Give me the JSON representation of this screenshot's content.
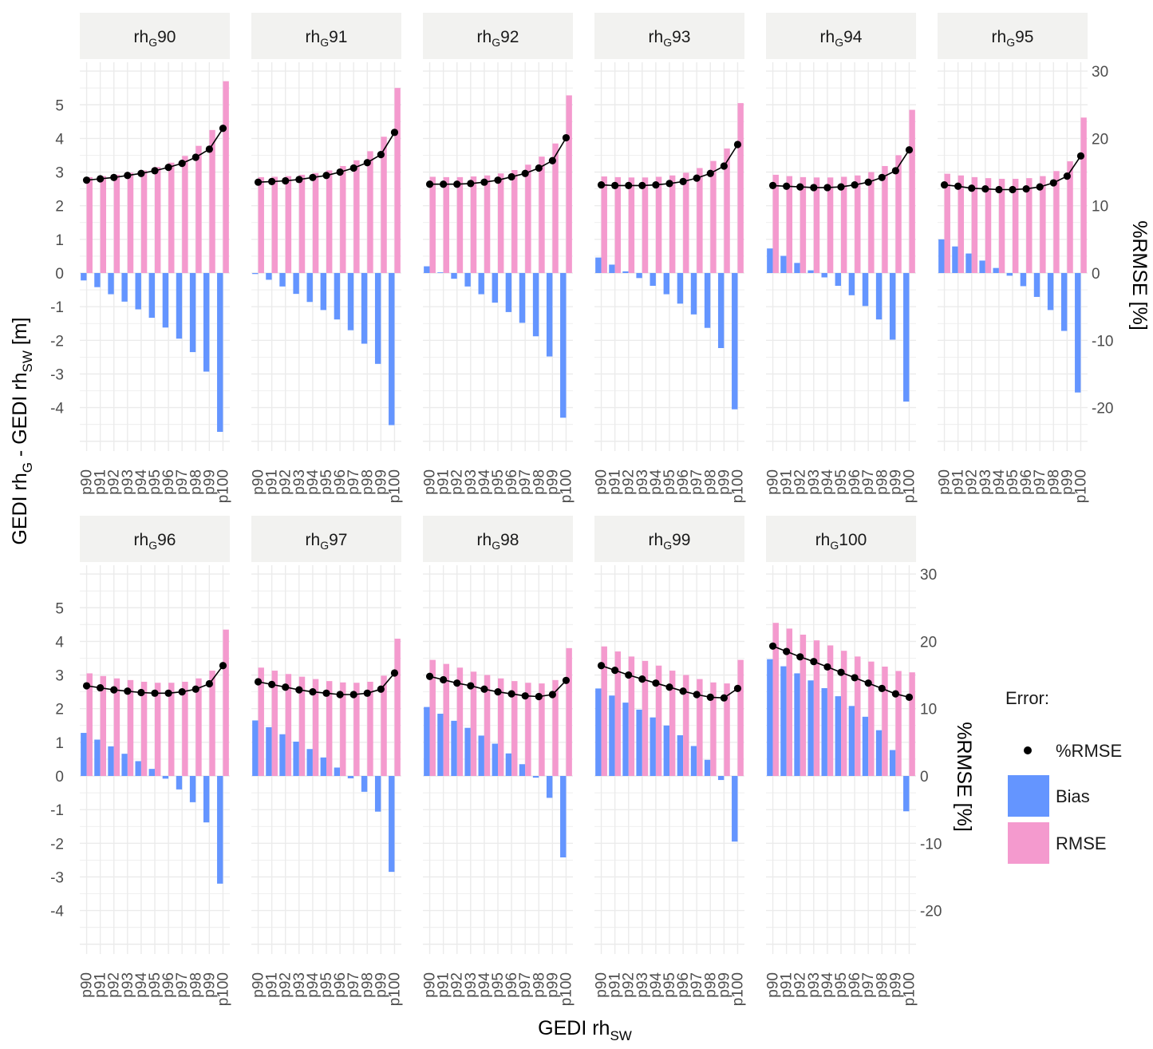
{
  "chart_data": {
    "type": "bar",
    "xlabel": {
      "main": "GEDI rh",
      "sub": "SW"
    },
    "ylabel": {
      "p1": "GEDI rh",
      "s1": "G",
      "p2": " - GEDI rh",
      "s2": "SW",
      "p3": " [m]"
    },
    "y2label": "%RMSE [%]",
    "categories": [
      "p90",
      "p91",
      "p92",
      "p93",
      "p94",
      "p95",
      "p96",
      "p97",
      "p98",
      "p99",
      "p100"
    ],
    "ylim": [
      -5.3,
      6.2
    ],
    "y_ticks": [
      "5",
      "4",
      "3",
      "2",
      "1",
      "0",
      "-1",
      "-2",
      "-3",
      "-4"
    ],
    "y2_ticks": [
      "30",
      "20",
      "10",
      "0",
      "-10",
      "-20"
    ],
    "legend": {
      "title": "Error:",
      "position": "right",
      "items": [
        "%RMSE",
        "Bias",
        "RMSE"
      ]
    },
    "colors": {
      "bias": "#6495FF",
      "rmse": "#F49ACE",
      "prmse": "#000000",
      "strip_bg": "#F2F2F0",
      "grid": "#EBEBEB"
    },
    "panels": [
      {
        "prefix": "rh",
        "sub": "G",
        "num": "90",
        "bias": [
          -0.22,
          -0.42,
          -0.63,
          -0.85,
          -1.08,
          -1.33,
          -1.62,
          -1.95,
          -2.35,
          -2.93,
          -4.72
        ],
        "rmse": [
          2.85,
          2.88,
          2.92,
          2.98,
          3.05,
          3.15,
          3.28,
          3.48,
          3.78,
          4.25,
          5.7
        ],
        "prmse": [
          13.8,
          14.0,
          14.2,
          14.5,
          14.8,
          15.2,
          15.7,
          16.3,
          17.2,
          18.4,
          21.5
        ]
      },
      {
        "prefix": "rh",
        "sub": "G",
        "num": "91",
        "bias": [
          -0.03,
          -0.2,
          -0.4,
          -0.62,
          -0.86,
          -1.1,
          -1.38,
          -1.7,
          -2.1,
          -2.7,
          -4.52
        ],
        "rmse": [
          2.85,
          2.86,
          2.88,
          2.92,
          2.97,
          3.05,
          3.18,
          3.35,
          3.62,
          4.05,
          5.5
        ],
        "prmse": [
          13.5,
          13.6,
          13.7,
          13.9,
          14.2,
          14.5,
          15.0,
          15.6,
          16.4,
          17.6,
          20.9
        ]
      },
      {
        "prefix": "rh",
        "sub": "G",
        "num": "92",
        "bias": [
          0.2,
          0.02,
          -0.17,
          -0.4,
          -0.63,
          -0.88,
          -1.16,
          -1.48,
          -1.88,
          -2.48,
          -4.3
        ],
        "rmse": [
          2.86,
          2.85,
          2.85,
          2.87,
          2.9,
          2.96,
          3.06,
          3.22,
          3.46,
          3.85,
          5.28
        ],
        "prmse": [
          13.2,
          13.2,
          13.2,
          13.3,
          13.5,
          13.8,
          14.3,
          14.8,
          15.6,
          16.7,
          20.1
        ]
      },
      {
        "prefix": "rh",
        "sub": "G",
        "num": "93",
        "bias": [
          0.46,
          0.25,
          0.05,
          -0.15,
          -0.38,
          -0.63,
          -0.91,
          -1.23,
          -1.63,
          -2.23,
          -4.05
        ],
        "rmse": [
          2.87,
          2.85,
          2.84,
          2.84,
          2.86,
          2.9,
          2.98,
          3.12,
          3.33,
          3.7,
          5.05
        ],
        "prmse": [
          13.1,
          13.0,
          13.0,
          13.0,
          13.1,
          13.3,
          13.6,
          14.1,
          14.8,
          15.9,
          19.1
        ]
      },
      {
        "prefix": "rh",
        "sub": "G",
        "num": "94",
        "bias": [
          0.73,
          0.51,
          0.3,
          0.08,
          -0.13,
          -0.38,
          -0.66,
          -0.98,
          -1.38,
          -1.98,
          -3.82
        ],
        "rmse": [
          2.92,
          2.88,
          2.85,
          2.84,
          2.84,
          2.86,
          2.9,
          3.0,
          3.18,
          3.5,
          4.85
        ],
        "prmse": [
          13.0,
          12.9,
          12.8,
          12.7,
          12.7,
          12.8,
          13.1,
          13.5,
          14.2,
          15.2,
          18.3
        ]
      },
      {
        "prefix": "rh",
        "sub": "G",
        "num": "95",
        "bias": [
          1.0,
          0.79,
          0.58,
          0.37,
          0.15,
          -0.08,
          -0.39,
          -0.71,
          -1.1,
          -1.72,
          -3.55
        ],
        "rmse": [
          2.95,
          2.9,
          2.85,
          2.82,
          2.8,
          2.8,
          2.82,
          2.88,
          3.03,
          3.32,
          4.62
        ],
        "prmse": [
          13.1,
          12.9,
          12.6,
          12.5,
          12.4,
          12.4,
          12.5,
          12.8,
          13.4,
          14.4,
          17.4
        ]
      },
      {
        "prefix": "rh",
        "sub": "G",
        "num": "96",
        "bias": [
          1.28,
          1.08,
          0.88,
          0.66,
          0.44,
          0.21,
          -0.08,
          -0.4,
          -0.78,
          -1.38,
          -3.2
        ],
        "rmse": [
          3.05,
          2.97,
          2.9,
          2.85,
          2.8,
          2.77,
          2.77,
          2.8,
          2.9,
          3.13,
          4.35
        ],
        "prmse": [
          13.4,
          13.1,
          12.8,
          12.6,
          12.4,
          12.3,
          12.3,
          12.5,
          12.9,
          13.7,
          16.4
        ]
      },
      {
        "prefix": "rh",
        "sub": "G",
        "num": "97",
        "bias": [
          1.65,
          1.45,
          1.24,
          1.02,
          0.8,
          0.55,
          0.25,
          -0.07,
          -0.47,
          -1.06,
          -2.85
        ],
        "rmse": [
          3.22,
          3.13,
          3.03,
          2.95,
          2.88,
          2.82,
          2.78,
          2.77,
          2.8,
          2.98,
          4.08
        ],
        "prmse": [
          14.0,
          13.6,
          13.2,
          12.8,
          12.5,
          12.3,
          12.1,
          12.1,
          12.3,
          12.9,
          15.3
        ]
      },
      {
        "prefix": "rh",
        "sub": "G",
        "num": "98",
        "bias": [
          2.05,
          1.85,
          1.64,
          1.43,
          1.2,
          0.96,
          0.67,
          0.35,
          -0.05,
          -0.65,
          -2.42
        ],
        "rmse": [
          3.45,
          3.33,
          3.22,
          3.1,
          3.0,
          2.9,
          2.82,
          2.77,
          2.75,
          2.85,
          3.8
        ],
        "prmse": [
          14.8,
          14.3,
          13.8,
          13.4,
          12.9,
          12.5,
          12.2,
          11.9,
          11.8,
          12.1,
          14.2
        ]
      },
      {
        "prefix": "rh",
        "sub": "G",
        "num": "99",
        "bias": [
          2.6,
          2.39,
          2.18,
          1.97,
          1.74,
          1.5,
          1.21,
          0.89,
          0.48,
          -0.12,
          -1.95
        ],
        "rmse": [
          3.85,
          3.7,
          3.55,
          3.42,
          3.28,
          3.13,
          3.0,
          2.88,
          2.78,
          2.75,
          3.45
        ],
        "prmse": [
          16.4,
          15.7,
          15.0,
          14.4,
          13.8,
          13.2,
          12.6,
          12.1,
          11.7,
          11.6,
          13.0
        ]
      },
      {
        "prefix": "rh",
        "sub": "G",
        "num": "100",
        "bias": [
          3.47,
          3.26,
          3.05,
          2.84,
          2.61,
          2.37,
          2.08,
          1.76,
          1.36,
          0.77,
          -1.05
        ],
        "rmse": [
          4.55,
          4.38,
          4.2,
          4.03,
          3.88,
          3.72,
          3.55,
          3.4,
          3.25,
          3.12,
          3.08
        ],
        "prmse": [
          19.3,
          18.5,
          17.7,
          17.0,
          16.2,
          15.4,
          14.6,
          13.8,
          13.0,
          12.2,
          11.7
        ]
      }
    ]
  }
}
